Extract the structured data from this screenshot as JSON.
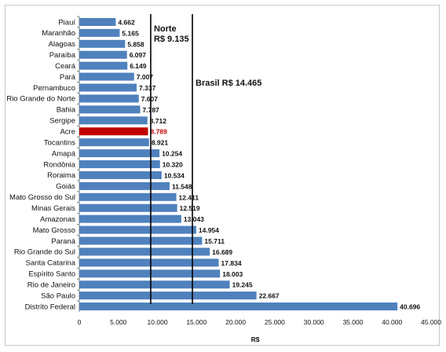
{
  "chart_data": {
    "type": "bar",
    "orientation": "horizontal",
    "categories": [
      "Piauí",
      "Maranhão",
      "Alagoas",
      "Paraíba",
      "Ceará",
      "Pará",
      "Pernambuco",
      "Rio Grande do Norte",
      "Bahia",
      "Sergipe",
      "Acre",
      "Tocantins",
      "Amapá",
      "Rondônia",
      "Roraima",
      "Goiás",
      "Mato Grosso do Sul",
      "Minas Gerais",
      "Amazonas",
      "Mato Grosso",
      "Paraná",
      "Rio Grande do Sul",
      "Santa Catarina",
      "Espírito Santo",
      "Rio de Janeiro",
      "São Paulo",
      "Distrito Federal"
    ],
    "values": [
      4662,
      5165,
      5858,
      6097,
      6149,
      7007,
      7337,
      7607,
      7787,
      8712,
      8789,
      8921,
      10254,
      10320,
      10534,
      11548,
      12411,
      12519,
      13043,
      14954,
      15711,
      16689,
      17834,
      18003,
      19245,
      22667,
      40696
    ],
    "value_labels": [
      "4.662",
      "5.165",
      "5.858",
      "6.097",
      "6.149",
      "7.007",
      "7.337",
      "7.607",
      "7.787",
      "8.712",
      "8.789",
      "8.921",
      "10.254",
      "10.320",
      "10.534",
      "11.548",
      "12.411",
      "12.519",
      "13.043",
      "14.954",
      "15.711",
      "16.689",
      "17.834",
      "18.003",
      "19.245",
      "22.667",
      "40.696"
    ],
    "highlight": "Acre",
    "bar_color": "#4f81bd",
    "highlight_color": "#c00000",
    "highlight_label_color": "#c00000",
    "xlabel": "R$",
    "xlim": [
      0,
      45000
    ],
    "xticks": [
      0,
      5000,
      10000,
      15000,
      20000,
      25000,
      30000,
      35000,
      40000,
      45000
    ],
    "xtick_labels": [
      "0",
      "5.000",
      "10.000",
      "15.000",
      "20.000",
      "25.000",
      "30.000",
      "35.000",
      "40.000",
      "45.000"
    ],
    "reference_lines": [
      {
        "value": 9135,
        "label_lines": [
          "Norte",
          "R$ 9.135"
        ]
      },
      {
        "value": 14465,
        "label_lines": [
          "Brasil  R$ 14.465"
        ]
      }
    ],
    "grid": false,
    "legend": "none"
  }
}
